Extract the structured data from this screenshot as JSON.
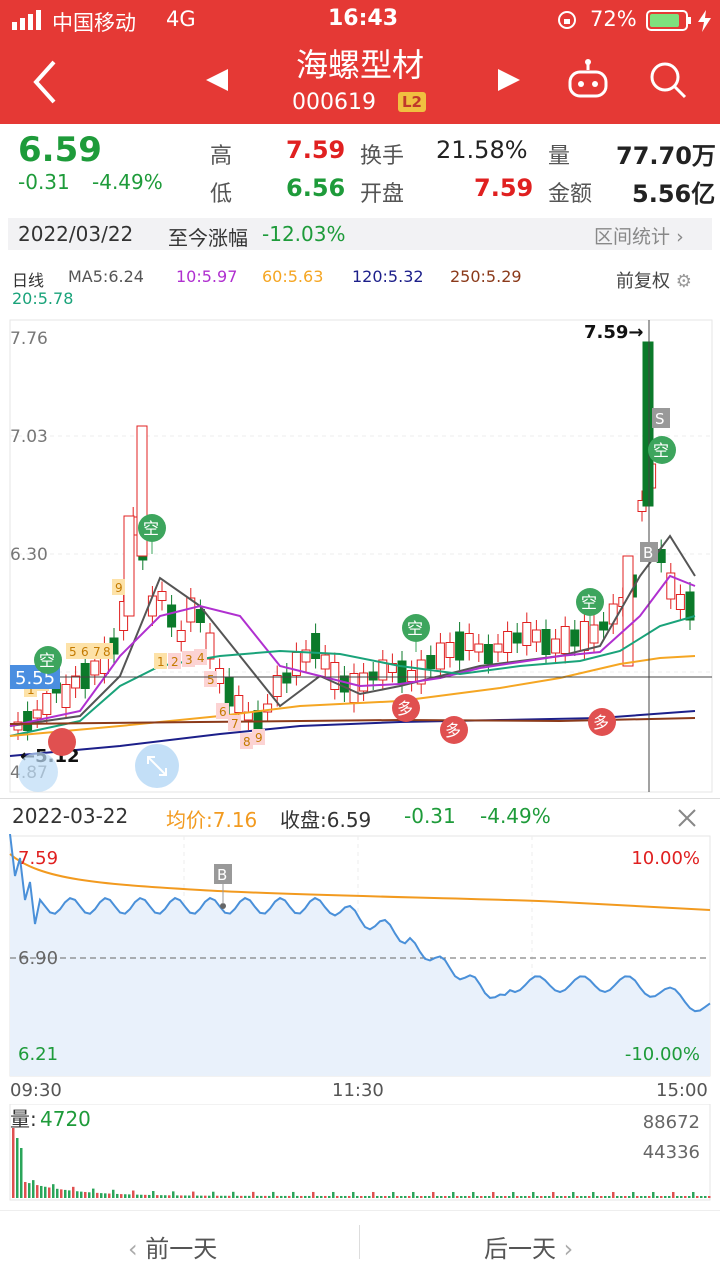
{
  "status": {
    "carrier": "中国移动",
    "network": "4G",
    "time": "16:43",
    "battery": "72%"
  },
  "nav": {
    "title": "海螺型材",
    "code": "000619",
    "badge": "L2"
  },
  "quote": {
    "price": "6.59",
    "change": "-0.31",
    "pct": "-4.49%",
    "high_label": "高",
    "high": "7.59",
    "low_label": "低",
    "low": "6.56",
    "turnover_label": "换手",
    "turnover": "21.58%",
    "open_label": "开盘",
    "open": "7.59",
    "volume_label": "量",
    "volume": "77.70万",
    "amount_label": "金额",
    "amount": "5.56亿"
  },
  "datebar": {
    "date": "2022/03/22",
    "label": "至今涨幅",
    "value": "-12.03%",
    "stat": "区间统计"
  },
  "ma": {
    "period": "日线",
    "ma5": "MA5:6.24",
    "ma10": "10:5.97",
    "ma60": "60:5.63",
    "ma120": "120:5.32",
    "ma250": "250:5.29",
    "ma20": "20:5.78",
    "adjust": "前复权",
    "colors": {
      "ma5": "#555555",
      "ma10": "#b030d0",
      "ma20": "#1aa37a",
      "ma60": "#f5a623",
      "ma120": "#1c1f8a",
      "ma250": "#8b3a1a"
    }
  },
  "kchart": {
    "y_labels": [
      "7.76",
      "7.03",
      "6.30",
      "4.87"
    ],
    "crosshair_label": "5.55",
    "high_marker": "7.59→",
    "low_marker": "←5.12",
    "kong_label": "空",
    "duo_label": "多",
    "s_label": "S",
    "b_label": "B",
    "seq_labels": [
      "1",
      "2",
      "5",
      "6",
      "7",
      "8",
      "9",
      "1",
      "2",
      "3",
      "4",
      "5",
      "6",
      "7",
      "8",
      "9"
    ]
  },
  "tick": {
    "date": "2022-03-22",
    "avg_label": "均价:7.16",
    "close_label": "收盘:6.59",
    "change": "-0.31",
    "pct": "-4.49%",
    "y_top": "7.59",
    "y_mid": "6.90",
    "y_bot": "6.21",
    "pct_top": "10.00%",
    "pct_bot": "-10.00%",
    "t_start": "09:30",
    "t_mid": "11:30",
    "t_end": "15:00",
    "b_label": "B"
  },
  "volume": {
    "label": "量:",
    "value": "4720",
    "max": "88672",
    "mid": "44336"
  },
  "footer": {
    "prev": "前一天",
    "next": "后一天"
  }
}
